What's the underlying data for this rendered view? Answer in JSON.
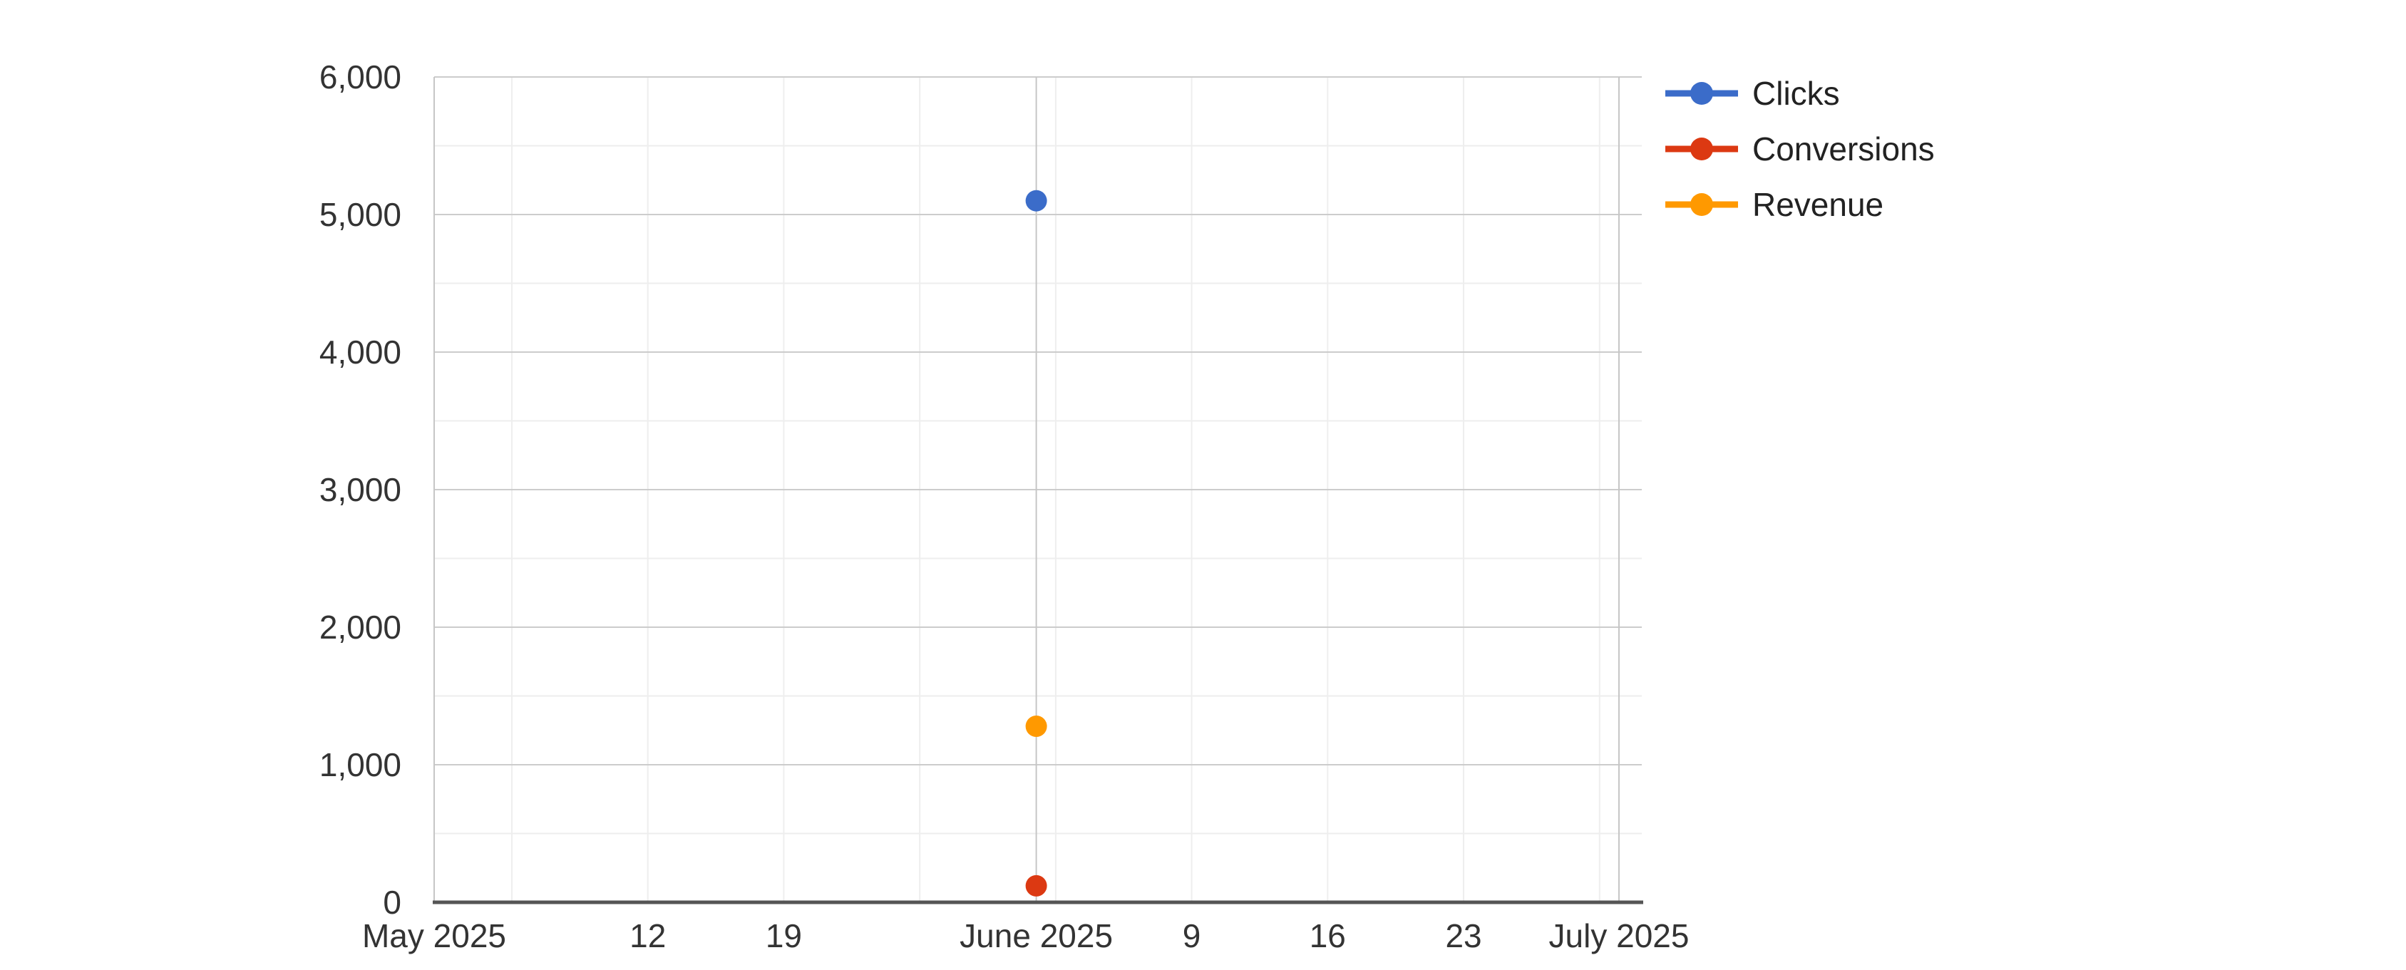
{
  "chart_data": {
    "type": "line",
    "title": "",
    "xlabel": "",
    "ylabel": "",
    "grid": true,
    "legend_position": "right",
    "x_axis": {
      "kind": "date",
      "start_date": "2025-05-01",
      "end_date": "2025-07-02",
      "ticks": [
        {
          "label": "May 2025",
          "day": 0
        },
        {
          "label": "12",
          "day": 11
        },
        {
          "label": "19",
          "day": 18
        },
        {
          "label": "June 2025",
          "day": 31
        },
        {
          "label": "9",
          "day": 39
        },
        {
          "label": "16",
          "day": 46
        },
        {
          "label": "23",
          "day": 53
        },
        {
          "label": "July 2025",
          "day": 61
        }
      ],
      "weekly_gridline_days": [
        4,
        11,
        18,
        25,
        32,
        39,
        46,
        53,
        60
      ],
      "month_gridline_days": [
        0,
        31,
        61
      ]
    },
    "y_axis": {
      "min": 0,
      "max": 6000,
      "major_step": 1000,
      "minor_step": 500,
      "ticks": [
        {
          "label": "0",
          "value": 0
        },
        {
          "label": "1,000",
          "value": 1000
        },
        {
          "label": "2,000",
          "value": 2000
        },
        {
          "label": "3,000",
          "value": 3000
        },
        {
          "label": "4,000",
          "value": 4000
        },
        {
          "label": "5,000",
          "value": 5000
        },
        {
          "label": "6,000",
          "value": 6000
        }
      ]
    },
    "series": [
      {
        "name": "Clicks",
        "color": "#3B6CC9",
        "points": [
          {
            "date": "2025-06-01",
            "day": 31,
            "value": 5100
          }
        ]
      },
      {
        "name": "Conversions",
        "color": "#DC3912",
        "points": [
          {
            "date": "2025-06-01",
            "day": 31,
            "value": 120
          }
        ]
      },
      {
        "name": "Revenue",
        "color": "#FF9900",
        "points": [
          {
            "date": "2025-06-01",
            "day": 31,
            "value": 1280
          }
        ]
      }
    ]
  },
  "styles": {
    "background": "#ffffff",
    "axis_text_color": "#333333",
    "legend_text_color": "#222222",
    "gridline_major": "#cccccc",
    "gridline_minor": "#eeeeee",
    "gridline_month": "#c6c6c6",
    "baseline_color": "#555555"
  }
}
